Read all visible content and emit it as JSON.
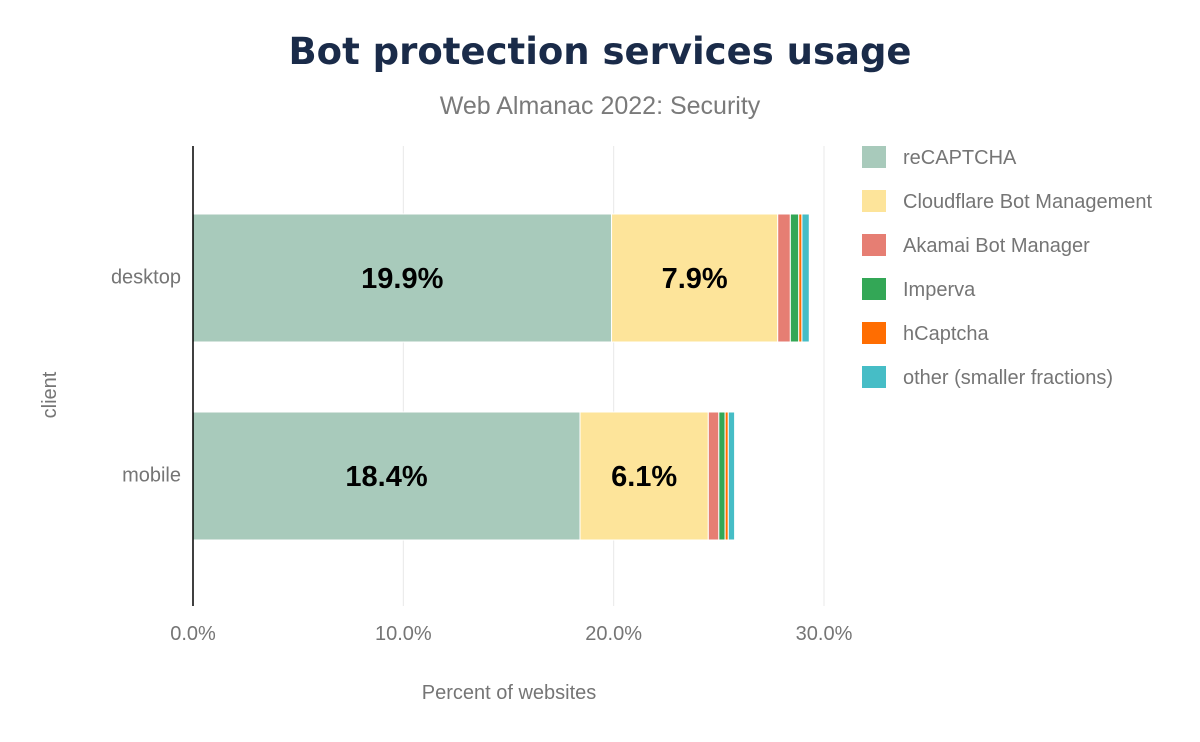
{
  "chart_data": {
    "type": "bar",
    "orientation": "horizontal",
    "stacked": true,
    "title": "Bot protection services usage",
    "subtitle": "Web Almanac 2022: Security",
    "xlabel": "Percent of websites",
    "ylabel": "client",
    "xlim": [
      0,
      30
    ],
    "xticks": [
      0,
      10,
      20,
      30
    ],
    "xtick_labels": [
      "0.0%",
      "10.0%",
      "20.0%",
      "30.0%"
    ],
    "categories": [
      "desktop",
      "mobile"
    ],
    "grid": true,
    "legend_position": "right",
    "series": [
      {
        "name": "reCAPTCHA",
        "color": "#a8cabb",
        "values": [
          19.9,
          18.4
        ],
        "labels": [
          "19.9%",
          "18.4%"
        ]
      },
      {
        "name": "Cloudflare Bot Management",
        "color": "#fde49a",
        "values": [
          7.9,
          6.1
        ],
        "labels": [
          "7.9%",
          "6.1%"
        ]
      },
      {
        "name": "Akamai Bot Manager",
        "color": "#e67e73",
        "values": [
          0.6,
          0.5
        ],
        "labels": [
          "",
          ""
        ]
      },
      {
        "name": "Imperva",
        "color": "#33a756",
        "values": [
          0.4,
          0.3
        ],
        "labels": [
          "",
          ""
        ]
      },
      {
        "name": "hCaptcha",
        "color": "#ff6d01",
        "values": [
          0.15,
          0.15
        ],
        "labels": [
          "",
          ""
        ]
      },
      {
        "name": "other (smaller fractions)",
        "color": "#46bdc6",
        "values": [
          0.35,
          0.3
        ],
        "labels": [
          "",
          ""
        ]
      }
    ]
  }
}
